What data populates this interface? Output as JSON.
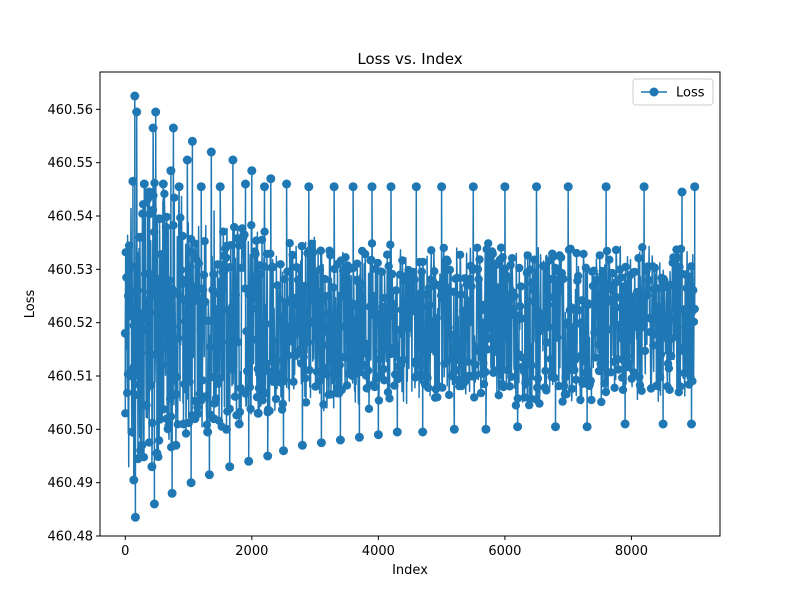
{
  "chart_data": {
    "type": "line",
    "title": "Loss vs. Index",
    "xlabel": "Index",
    "ylabel": "Loss",
    "xlim": [
      -400,
      9400
    ],
    "ylim": [
      460.48,
      460.567
    ],
    "x_ticks": [
      0,
      2000,
      4000,
      6000,
      8000
    ],
    "x_tick_labels": [
      "0",
      "2000",
      "4000",
      "6000",
      "8000"
    ],
    "y_ticks": [
      460.48,
      460.49,
      460.5,
      460.51,
      460.52,
      460.53,
      460.54,
      460.55,
      460.56
    ],
    "y_tick_labels": [
      "460.48",
      "460.49",
      "460.50",
      "460.51",
      "460.52",
      "460.53",
      "460.54",
      "460.55",
      "460.56"
    ],
    "grid": false,
    "legend": {
      "position": "top-right",
      "entries": [
        "Loss"
      ]
    },
    "series": [
      {
        "name": "Loss",
        "color": "#1f77b4",
        "marker": "circle",
        "x_range": [
          0,
          9000
        ],
        "points": [
          [
            0,
            460.518
          ],
          [
            50,
            460.525
          ],
          [
            100,
            460.51
          ],
          [
            120,
            460.5465
          ],
          [
            135,
            460.4905
          ],
          [
            150,
            460.5625
          ],
          [
            160,
            460.4835
          ],
          [
            180,
            460.5595
          ],
          [
            200,
            460.4945
          ],
          [
            230,
            460.536
          ],
          [
            260,
            460.497
          ],
          [
            300,
            460.546
          ],
          [
            330,
            460.5045
          ],
          [
            380,
            460.5445
          ],
          [
            420,
            460.493
          ],
          [
            440,
            460.5565
          ],
          [
            460,
            460.486
          ],
          [
            480,
            460.5595
          ],
          [
            500,
            460.4955
          ],
          [
            540,
            460.5395
          ],
          [
            600,
            460.546
          ],
          [
            660,
            460.502
          ],
          [
            720,
            460.5485
          ],
          [
            740,
            460.488
          ],
          [
            760,
            460.5565
          ],
          [
            800,
            460.497
          ],
          [
            850,
            460.5455
          ],
          [
            920,
            460.501
          ],
          [
            980,
            460.5505
          ],
          [
            1040,
            460.49
          ],
          [
            1060,
            460.554
          ],
          [
            1100,
            460.502
          ],
          [
            1200,
            460.5455
          ],
          [
            1300,
            460.4995
          ],
          [
            1330,
            460.4915
          ],
          [
            1360,
            460.552
          ],
          [
            1400,
            460.502
          ],
          [
            1500,
            460.5455
          ],
          [
            1600,
            460.5
          ],
          [
            1650,
            460.493
          ],
          [
            1700,
            460.5505
          ],
          [
            1800,
            460.501
          ],
          [
            1900,
            460.546
          ],
          [
            1950,
            460.494
          ],
          [
            2000,
            460.5485
          ],
          [
            2100,
            460.503
          ],
          [
            2200,
            460.5455
          ],
          [
            2250,
            460.495
          ],
          [
            2300,
            460.547
          ],
          [
            2500,
            460.496
          ],
          [
            2550,
            460.546
          ],
          [
            2800,
            460.497
          ],
          [
            2900,
            460.5455
          ],
          [
            3100,
            460.4975
          ],
          [
            3300,
            460.5455
          ],
          [
            3400,
            460.498
          ],
          [
            3600,
            460.5455
          ],
          [
            3700,
            460.4985
          ],
          [
            3900,
            460.5455
          ],
          [
            4000,
            460.499
          ],
          [
            4200,
            460.5455
          ],
          [
            4300,
            460.4995
          ],
          [
            4600,
            460.5455
          ],
          [
            4700,
            460.4995
          ],
          [
            5000,
            460.5455
          ],
          [
            5200,
            460.5
          ],
          [
            5500,
            460.5455
          ],
          [
            5700,
            460.5
          ],
          [
            6000,
            460.5455
          ],
          [
            6200,
            460.5005
          ],
          [
            6500,
            460.5455
          ],
          [
            6800,
            460.5005
          ],
          [
            7000,
            460.5455
          ],
          [
            7300,
            460.5005
          ],
          [
            7600,
            460.5455
          ],
          [
            7900,
            460.501
          ],
          [
            8200,
            460.5455
          ],
          [
            8500,
            460.501
          ],
          [
            8800,
            460.5445
          ],
          [
            8950,
            460.501
          ],
          [
            9000,
            460.5455
          ]
        ]
      }
    ]
  }
}
